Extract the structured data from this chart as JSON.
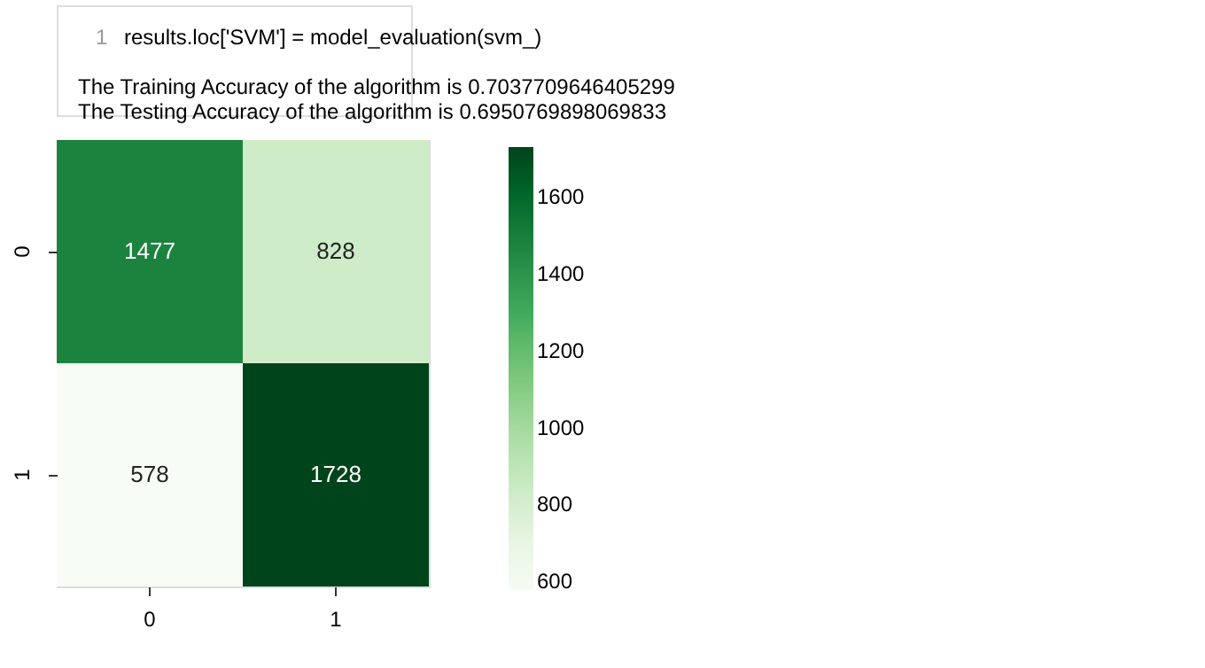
{
  "chart_data": {
    "type": "heatmap",
    "annotations": [
      "1",
      "results.loc['SVM'] = model_evaluation(svm_)",
      "The Training Accuracy of the algorithm is  0.7037709646405299",
      "The Testing Accuracy of the algorithm is  0.6950769898069833"
    ],
    "categories": [
      "0",
      "1"
    ],
    "y_categories": [
      "0",
      "1"
    ],
    "cells": [
      [
        1477,
        828
      ],
      [
        578,
        1728
      ]
    ],
    "data_labels": true,
    "clim": [
      578,
      1728
    ],
    "cticks": [
      600,
      800,
      1000,
      1200,
      1400,
      1600
    ]
  }
}
